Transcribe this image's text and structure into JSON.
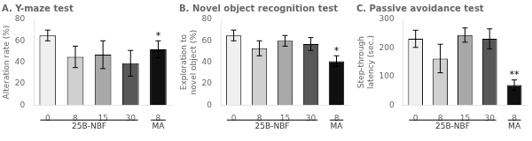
{
  "chart_data": [
    {
      "type": "bar",
      "title": "A. Y-maze test",
      "ylabel": "Alteration rate (%)",
      "categories": [
        "0",
        "8",
        "15",
        "30",
        "8"
      ],
      "values": [
        65,
        45,
        47,
        39,
        52
      ],
      "errors": [
        5,
        10,
        13,
        12,
        8
      ],
      "colors": [
        "#f0f0f0",
        "#d0d0d0",
        "#a8a8a8",
        "#585858",
        "#101010"
      ],
      "significance": [
        null,
        null,
        null,
        null,
        "*"
      ],
      "groups": [
        {
          "label": "25B-NBF",
          "first": 0,
          "last": 3
        },
        {
          "label": "MA",
          "first": 4,
          "last": 4
        }
      ],
      "ylim": [
        0,
        80
      ],
      "yticks": [
        0,
        20,
        40,
        60,
        80
      ],
      "grid": false
    },
    {
      "type": "bar",
      "title": "B. Novel object recognition test",
      "ylabel": "Exploration to\nnovel object (%)",
      "categories": [
        "0",
        "8",
        "15",
        "30",
        "8"
      ],
      "values": [
        65,
        53,
        60,
        57,
        41
      ],
      "errors": [
        5,
        7,
        5,
        6,
        5
      ],
      "colors": [
        "#f0f0f0",
        "#d0d0d0",
        "#a8a8a8",
        "#585858",
        "#101010"
      ],
      "significance": [
        null,
        null,
        null,
        null,
        "*"
      ],
      "groups": [
        {
          "label": "25B-NBF",
          "first": 0,
          "last": 3
        },
        {
          "label": "MA",
          "first": 4,
          "last": 4
        }
      ],
      "ylim": [
        0,
        80
      ],
      "yticks": [
        0,
        20,
        40,
        60,
        80
      ],
      "grid": false
    },
    {
      "type": "bar",
      "title": "C. Passive avoidance test",
      "ylabel": "Step-through\nlatency (sec.)",
      "categories": [
        "0",
        "8",
        "15",
        "30",
        "8"
      ],
      "values": [
        232,
        163,
        245,
        232,
        70
      ],
      "errors": [
        30,
        50,
        25,
        35,
        18
      ],
      "colors": [
        "#f0f0f0",
        "#d0d0d0",
        "#a8a8a8",
        "#585858",
        "#101010"
      ],
      "significance": [
        null,
        null,
        null,
        null,
        "**"
      ],
      "groups": [
        {
          "label": "25B-NBF",
          "first": 0,
          "last": 3
        },
        {
          "label": "MA",
          "first": 4,
          "last": 4
        }
      ],
      "ylim": [
        0,
        300
      ],
      "yticks": [
        0,
        100,
        200,
        300
      ],
      "grid": false
    }
  ]
}
